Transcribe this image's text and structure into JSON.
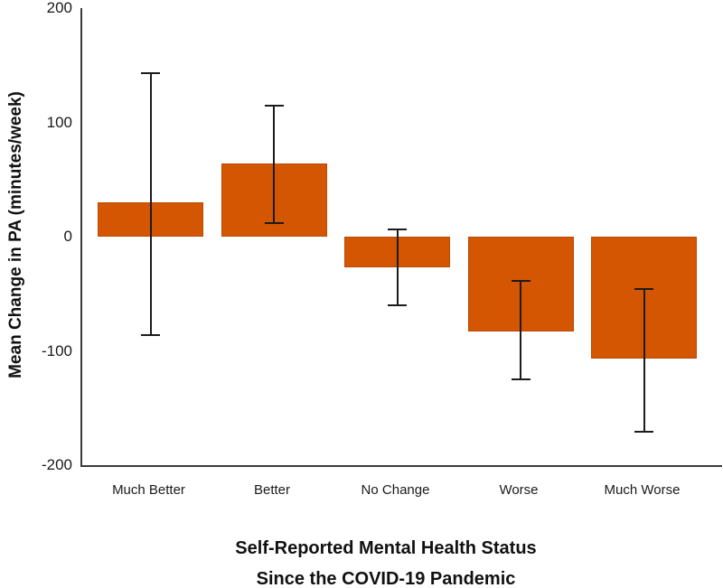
{
  "figure": {
    "y_axis_title": "Mean Change in PA (minutes/week)",
    "x_axis_title_line1": "Self-Reported Mental Health Status",
    "x_axis_title_line2": "Since the COVID-19 Pandemic"
  },
  "chart_data": {
    "type": "bar",
    "title": "",
    "categories": [
      "Much Better",
      "Better",
      "No Change",
      "Worse",
      "Much Worse"
    ],
    "series": [
      {
        "name": "Mean Change in PA (minutes/week)",
        "values": [
          30,
          64,
          -27,
          -83,
          -107
        ]
      }
    ],
    "error_bars": {
      "upper": [
        143,
        115,
        6,
        -39,
        -46
      ],
      "lower": [
        -86,
        12,
        -60,
        -125,
        -171
      ]
    },
    "xlabel": "Self-Reported Mental Health Status Since the COVID-19 Pandemic",
    "ylabel": "Mean Change in PA (minutes/week)",
    "ylim": [
      -200,
      200
    ],
    "yticks": [
      200,
      100,
      0,
      -100,
      -200
    ],
    "grid": false,
    "legend": null,
    "bar_color": "#D45502",
    "bar_edge_color": "#A84608",
    "axis_color": "#3a3a3a",
    "error_bar_color": "#1c1c1c"
  }
}
